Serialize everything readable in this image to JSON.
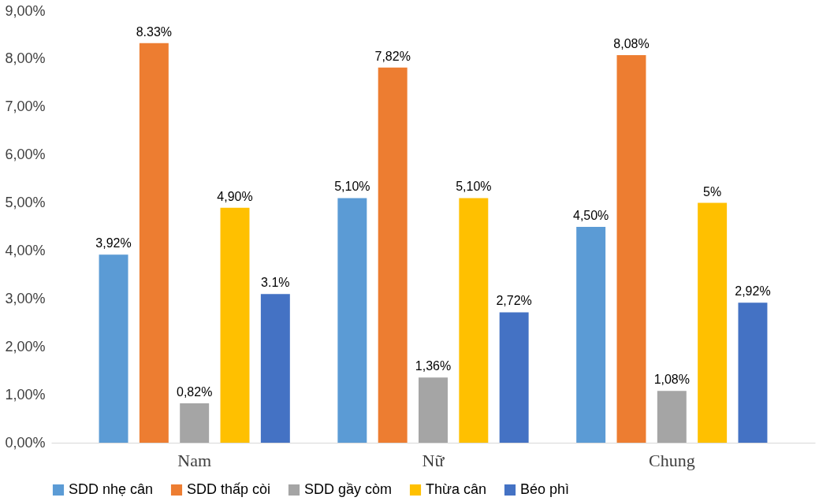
{
  "chart_data": {
    "type": "bar",
    "categories": [
      "Nam",
      "Nữ",
      "Chung"
    ],
    "series": [
      {
        "name": "SDD nhẹ cân",
        "color": "#5b9bd5",
        "values": [
          3.92,
          5.1,
          4.5
        ],
        "value_labels": [
          "3,92%",
          "5,10%",
          "4,50%"
        ]
      },
      {
        "name": "SDD thấp còi",
        "color": "#ed7d31",
        "values": [
          8.33,
          7.82,
          8.08
        ],
        "value_labels": [
          "8.33%",
          "7,82%",
          "8,08%"
        ]
      },
      {
        "name": "SDD gầy còm",
        "color": "#a5a5a5",
        "values": [
          0.82,
          1.36,
          1.08
        ],
        "value_labels": [
          "0,82%",
          "1,36%",
          "1,08%"
        ]
      },
      {
        "name": "Thừa cân",
        "color": "#ffc000",
        "values": [
          4.9,
          5.1,
          5.0
        ],
        "value_labels": [
          "4,90%",
          "5,10%",
          "5%"
        ]
      },
      {
        "name": "Béo phì",
        "color": "#4472c4",
        "values": [
          3.1,
          2.72,
          2.92
        ],
        "value_labels": [
          "3.1%",
          "2,72%",
          "2,92%"
        ]
      }
    ],
    "ylim": [
      0,
      9
    ],
    "yticks": [
      {
        "value": 0,
        "label": "0,00%"
      },
      {
        "value": 1,
        "label": "1,00%"
      },
      {
        "value": 2,
        "label": "2,00%"
      },
      {
        "value": 3,
        "label": "3,00%"
      },
      {
        "value": 4,
        "label": "4,00%"
      },
      {
        "value": 5,
        "label": "5,00%"
      },
      {
        "value": 6,
        "label": "6,00%"
      },
      {
        "value": 7,
        "label": "7,00%"
      },
      {
        "value": 8,
        "label": "8,00%"
      },
      {
        "value": 9,
        "label": "9,00%"
      }
    ],
    "grid": false,
    "legend": "bottom"
  }
}
